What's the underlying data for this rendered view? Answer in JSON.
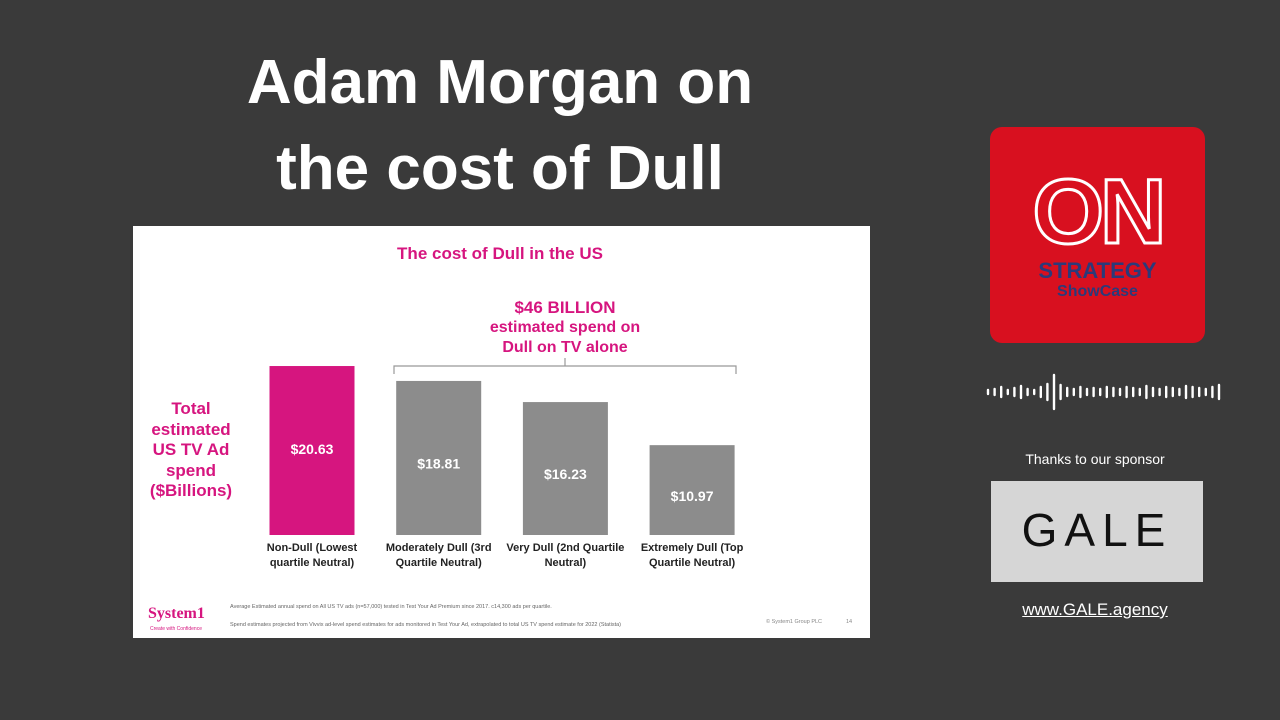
{
  "heading": [
    "Adam Morgan on",
    "the cost of Dull"
  ],
  "chart_data": {
    "type": "bar",
    "title": "The cost of Dull in the US",
    "y_label": "Total estimated US TV Ad spend ($Billions)",
    "categories": [
      "Non-Dull (Lowest quartile Neutral)",
      "Moderately Dull (3rd Quartile Neutral)",
      "Very Dull (2nd Quartile Neutral)",
      "Extremely Dull (Top Quartile Neutral)"
    ],
    "values": [
      20.63,
      18.81,
      16.23,
      10.97
    ],
    "value_labels": [
      "$20.63",
      "$18.81",
      "$16.23",
      "$10.97"
    ],
    "colors": [
      "#d6157f",
      "#8c8c8c",
      "#8c8c8c",
      "#8c8c8c"
    ],
    "ylim": [
      0,
      21
    ],
    "annotation": [
      "$46 BILLION",
      "estimated spend on",
      "Dull on TV alone"
    ]
  },
  "slide_footer": {
    "logo": "System1",
    "tagline": "Create with Confidence",
    "notes": [
      "Average Estimated annual spend on All US TV ads (n=57,000) tested in Test Your Ad Premium since 2017. c14,300 ads per quartile.",
      "Spend estimates projected from Vivvix ad-level spend estimates for ads monitored in Test Your Ad, extrapolated to total US TV spend estimate for 2022 (Statista)"
    ],
    "copyright": "© System1 Group PLC",
    "page": "14"
  },
  "podcast_logo": {
    "mark": "ON",
    "line1": "STRATEGY",
    "line2": "ShowCase"
  },
  "sponsor": {
    "thanks": "Thanks to our sponsor",
    "logo": "GALE",
    "link": "www.GALE.agency"
  }
}
